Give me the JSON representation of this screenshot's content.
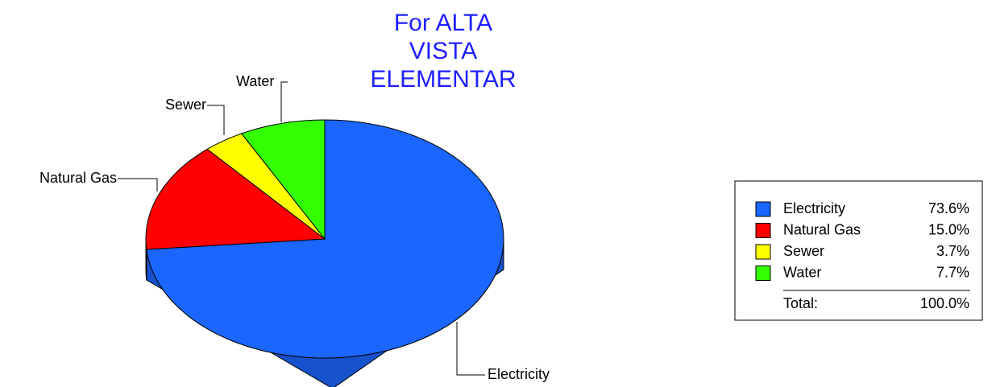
{
  "chart_data": {
    "type": "pie",
    "title": [
      "For ALTA",
      "VISTA",
      "ELEMENTAR"
    ],
    "categories": [
      "Electricity",
      "Natural Gas",
      "Sewer",
      "Water"
    ],
    "values": [
      73.6,
      15.0,
      3.7,
      7.7
    ],
    "value_labels": [
      "73.6%",
      "15.0%",
      "3.7%",
      "7.7%"
    ],
    "colors": [
      "#1a66ff",
      "#ff0000",
      "#ffff00",
      "#33ff00"
    ],
    "total": {
      "label": "Total:",
      "value": 100.0,
      "value_label": "100.0%"
    },
    "legend": "right"
  }
}
